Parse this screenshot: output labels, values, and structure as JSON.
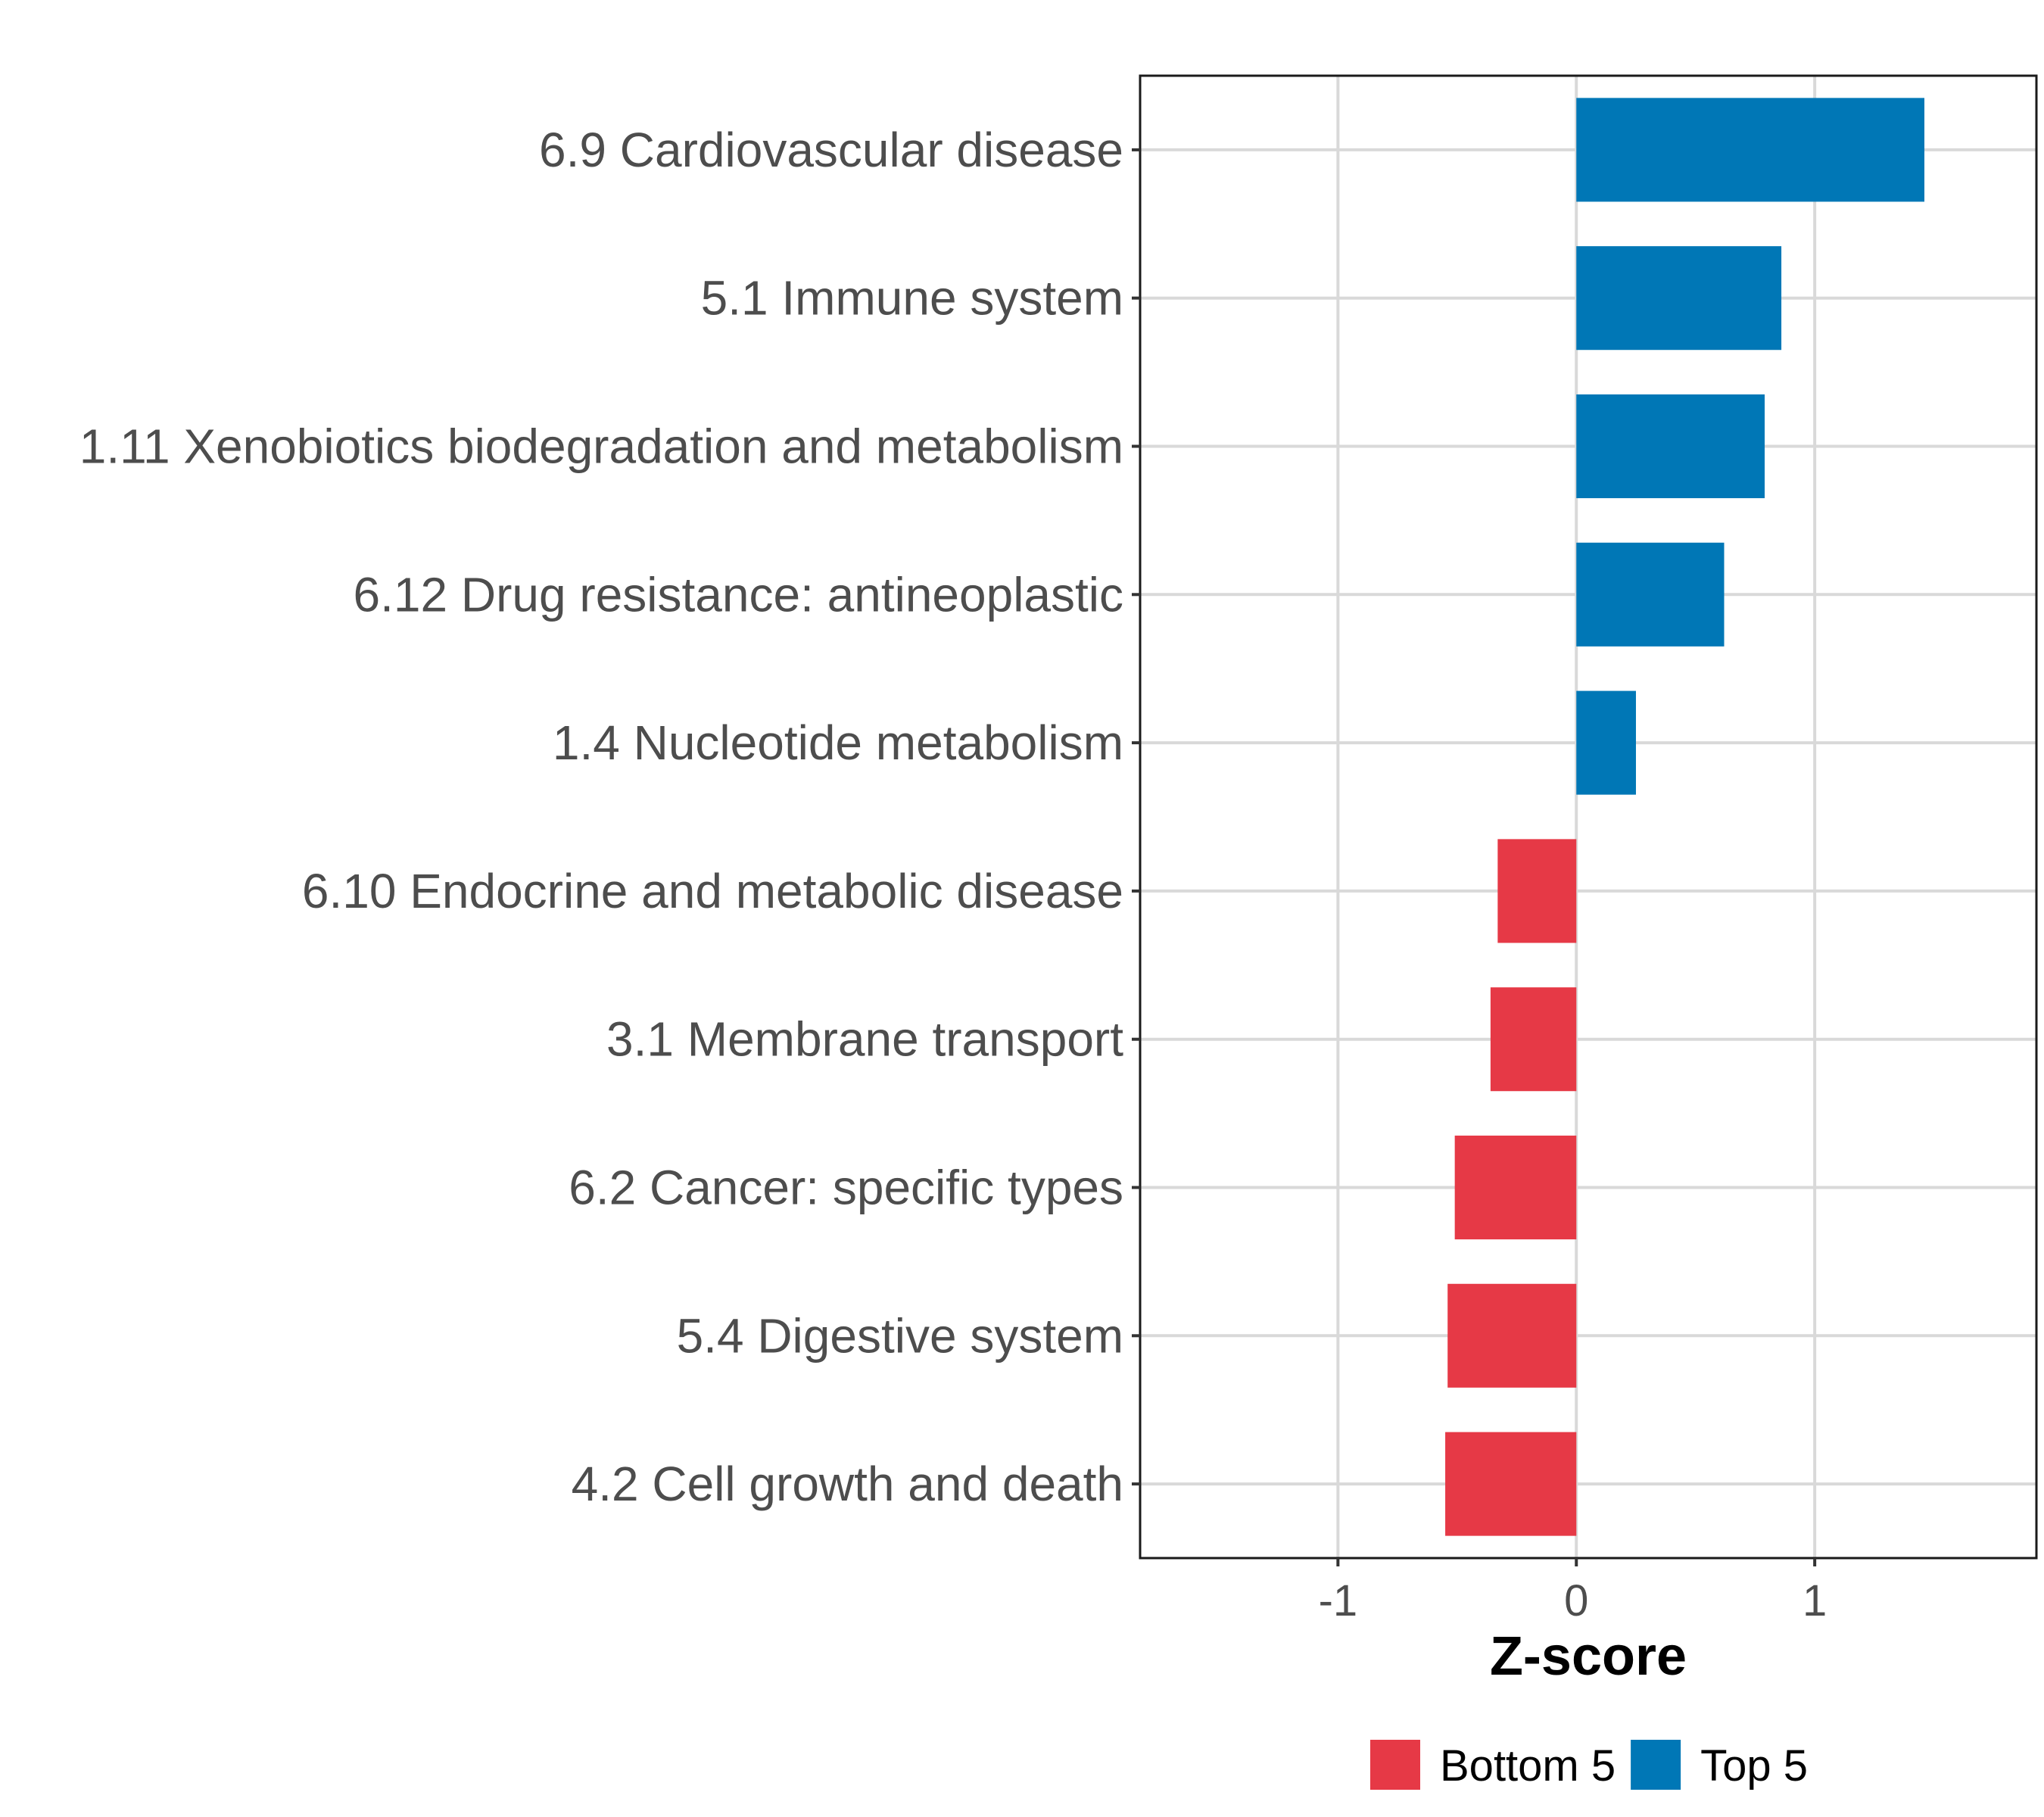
{
  "chart_data": {
    "type": "bar",
    "orientation": "horizontal",
    "categories": [
      "6.9 Cardiovascular disease",
      "5.1 Immune system",
      "1.11 Xenobiotics biodegradation and metabolism",
      "6.12 Drug resistance: antineoplastic",
      "1.4 Nucleotide metabolism",
      "6.10 Endocrine and metabolic disease",
      "3.1 Membrane transport",
      "6.2 Cancer: specific types",
      "5.4 Digestive system",
      "4.2 Cell growth and death"
    ],
    "values": [
      1.46,
      0.86,
      0.79,
      0.62,
      0.25,
      -0.33,
      -0.36,
      -0.51,
      -0.54,
      -0.55
    ],
    "groups": [
      "Top 5",
      "Top 5",
      "Top 5",
      "Top 5",
      "Top 5",
      "Bottom 5",
      "Bottom 5",
      "Bottom 5",
      "Bottom 5",
      "Bottom 5"
    ],
    "title": "",
    "xlabel": "Z-score",
    "ylabel": "",
    "xlim": [
      -1.83,
      1.93
    ],
    "xticks": [
      -1,
      0,
      1
    ],
    "xtick_labels": [
      "-1",
      "0",
      "1"
    ],
    "grid": true,
    "legend": {
      "position": "bottom",
      "entries": [
        {
          "label": "Bottom 5",
          "color": "#e63946"
        },
        {
          "label": "Top 5",
          "color": "#0077b6"
        }
      ]
    }
  }
}
